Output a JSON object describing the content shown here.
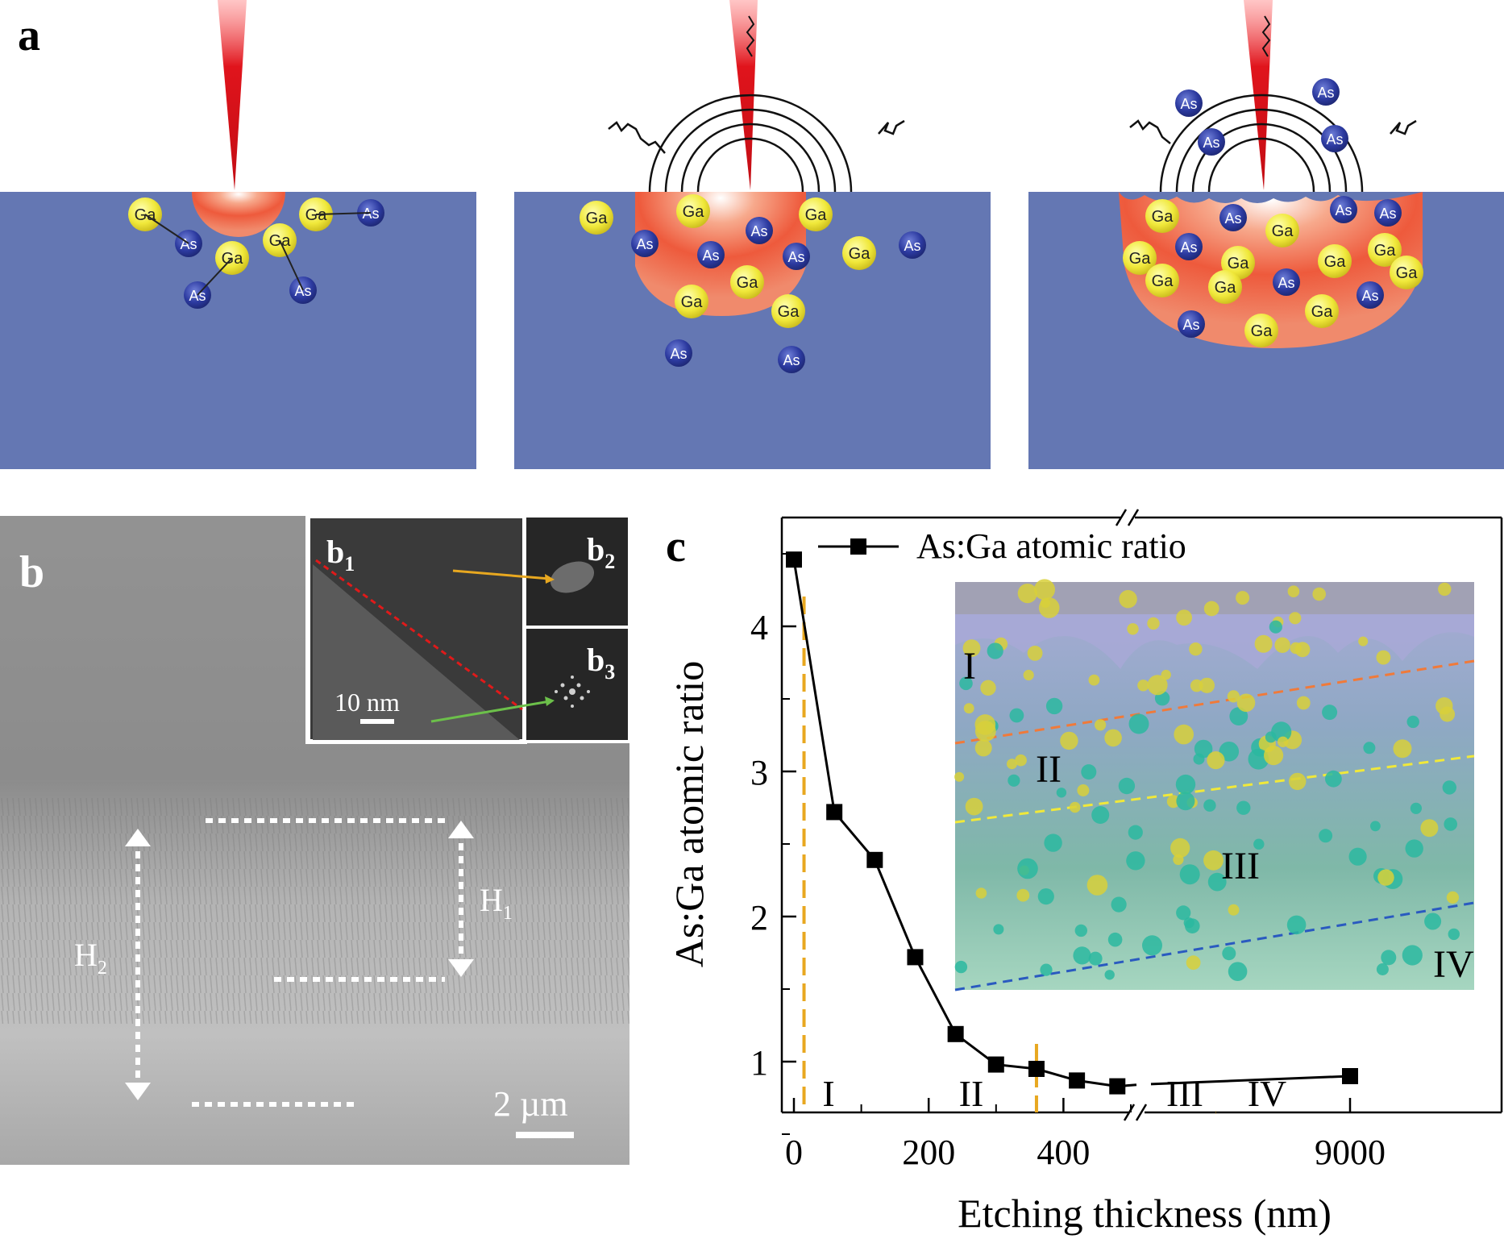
{
  "panel_a": {
    "label": "a",
    "atoms": {
      "ga": "Ga",
      "as": "As"
    },
    "colors": {
      "substrate": "#6477b3",
      "laser": "#e0141c",
      "melt": "#ee5a3c",
      "ga_atom": "#f0e83a",
      "as_atom": "#2c3aa0"
    }
  },
  "panel_b": {
    "label": "b",
    "inset_b1": "b",
    "inset_b1_sub": "1",
    "inset_b2": "b",
    "inset_b2_sub": "2",
    "inset_b3": "b",
    "inset_b3_sub": "3",
    "inset_scale": "10 nm",
    "scale_bar": "2 µm",
    "h1": "H",
    "h1_sub": "1",
    "h2": "H",
    "h2_sub": "2"
  },
  "panel_c": {
    "label": "c",
    "inset_regions": [
      "I",
      "II",
      "III",
      "IV"
    ],
    "region_labels": [
      "I",
      "II",
      "III",
      "IV"
    ]
  },
  "chart_data": {
    "type": "line",
    "xlabel": "Etching thickness (nm)",
    "ylabel": "As:Ga atomic ratio",
    "legend": "As:Ga atomic ratio",
    "legend_position": "top-left",
    "x_axis_break": true,
    "xticks": [
      "0",
      "200",
      "400",
      "9000"
    ],
    "yticks": [
      "1",
      "2",
      "3",
      "4"
    ],
    "ylim": [
      0.65,
      4.75
    ],
    "series": [
      {
        "name": "As:Ga atomic ratio",
        "x": [
          0,
          60,
          120,
          180,
          240,
          300,
          360,
          420,
          480,
          9000
        ],
        "y": [
          4.46,
          2.72,
          2.39,
          1.72,
          1.19,
          0.98,
          0.95,
          0.87,
          0.83,
          0.9
        ]
      }
    ],
    "region_boundaries": [
      15,
      360,
      "break-right"
    ]
  }
}
